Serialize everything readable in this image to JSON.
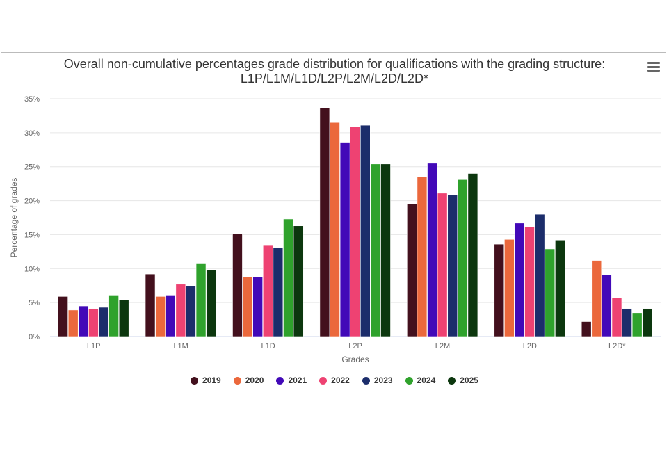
{
  "chart_data": {
    "type": "bar",
    "title": "Overall non-cumulative percentages grade distribution for qualifications with the grading structure: L1P/L1M/L1D/L2P/L2M/L2D/L2D*",
    "title_lines": [
      "Overall non-cumulative percentages grade distribution for qualifications with the grading structure:",
      "L1P/L1M/L1D/L2P/L2M/L2D/L2D*"
    ],
    "xlabel": "Grades",
    "ylabel": "Percentage of grades",
    "ylim": [
      0,
      35
    ],
    "yticks": [
      "0%",
      "5%",
      "10%",
      "15%",
      "20%",
      "25%",
      "30%",
      "35%"
    ],
    "grid": true,
    "legend": "bottom",
    "categories": [
      "L1P",
      "L1M",
      "L1D",
      "L2P",
      "L2M",
      "L2D",
      "L2D*"
    ],
    "series": [
      {
        "name": "2019",
        "color": "#43101d",
        "values": [
          5.9,
          9.2,
          15.1,
          33.6,
          19.5,
          13.6,
          2.2
        ]
      },
      {
        "name": "2020",
        "color": "#eb683c",
        "values": [
          3.9,
          5.9,
          8.8,
          31.5,
          23.5,
          14.3,
          11.2
        ]
      },
      {
        "name": "2021",
        "color": "#4209b8",
        "values": [
          4.5,
          6.1,
          8.8,
          28.6,
          25.5,
          16.7,
          9.1
        ]
      },
      {
        "name": "2022",
        "color": "#ee4272",
        "values": [
          4.1,
          7.7,
          13.4,
          30.9,
          21.1,
          16.2,
          5.7
        ]
      },
      {
        "name": "2023",
        "color": "#1c2d6b",
        "values": [
          4.3,
          7.5,
          13.1,
          31.1,
          20.9,
          18.0,
          4.1
        ]
      },
      {
        "name": "2024",
        "color": "#2fa22c",
        "values": [
          6.1,
          10.8,
          17.3,
          25.4,
          23.1,
          12.9,
          3.5
        ]
      },
      {
        "name": "2025",
        "color": "#0c370e",
        "values": [
          5.4,
          9.8,
          16.3,
          25.4,
          24.0,
          14.2,
          4.1
        ]
      }
    ]
  },
  "menu_icon": "hamburger-menu-icon"
}
